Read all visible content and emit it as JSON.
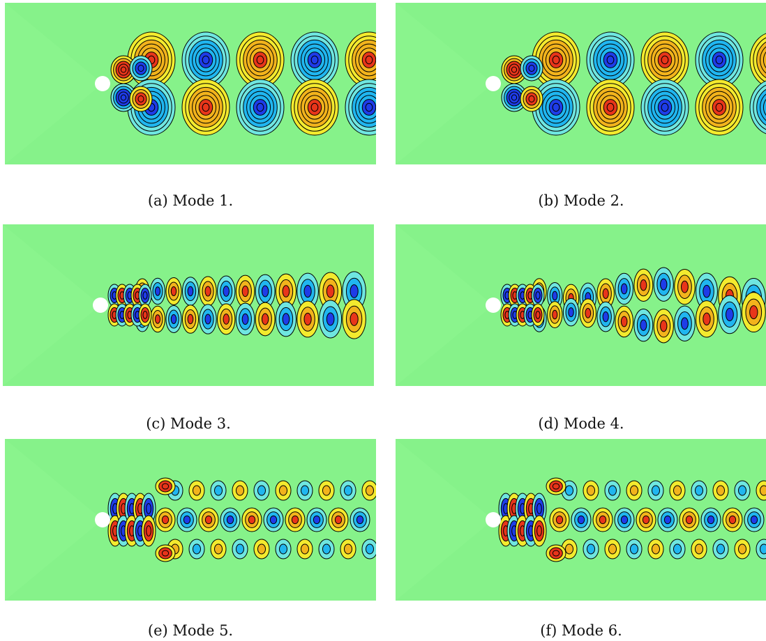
{
  "figure": {
    "panels": [
      {
        "id": "a",
        "caption": "(a) Mode 1.",
        "pattern": "clean-double-row",
        "phase": 0
      },
      {
        "id": "b",
        "caption": "(b) Mode 2.",
        "pattern": "clean-double-row",
        "phase": 0.5
      },
      {
        "id": "c",
        "caption": "(c) Mode 3.",
        "pattern": "fine-double-row",
        "phase": 0
      },
      {
        "id": "d",
        "caption": "(d) Mode 4.",
        "pattern": "fine-wavy",
        "phase": 0.5
      },
      {
        "id": "e",
        "caption": "(e) Mode 5.",
        "pattern": "central-row",
        "phase": 0
      },
      {
        "id": "f",
        "caption": "(f) Mode 6.",
        "pattern": "central-row",
        "phase": 0.5
      }
    ],
    "colors": {
      "background": "#86f28a",
      "positive_strong": "#e8351a",
      "positive": "#f2b31c",
      "positive_weak": "#f3ea2e",
      "negative_strong": "#1e3ce8",
      "negative": "#20b6f0",
      "negative_weak": "#6fe6e0",
      "contour": "#000000",
      "cylinder": "#ffffff"
    }
  }
}
